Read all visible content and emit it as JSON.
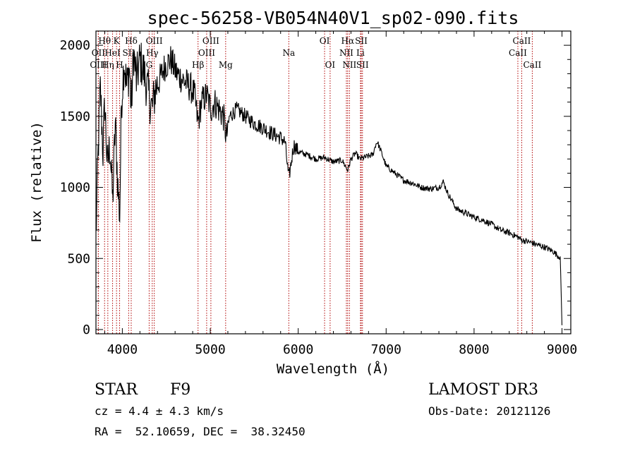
{
  "chart_data": {
    "type": "line",
    "title": "spec-56258-VB054N40V1_sp02-090.fits",
    "xlabel": "Wavelength (Å)",
    "ylabel": "Flux (relative)",
    "xlim": [
      3700,
      9100
    ],
    "ylim": [
      -30,
      2100
    ],
    "x_ticks": [
      4000,
      5000,
      6000,
      7000,
      8000,
      9000
    ],
    "x_tick_labels": [
      "4000",
      "5000",
      "6000",
      "7000",
      "8000",
      "9000"
    ],
    "y_ticks": [
      0,
      500,
      1000,
      1500,
      2000
    ],
    "y_tick_labels": [
      "0",
      "500",
      "1000",
      "1500",
      "2000"
    ],
    "spectrum": {
      "name": "flux",
      "x": [
        3700,
        3720,
        3750,
        3780,
        3800,
        3830,
        3860,
        3890,
        3920,
        3950,
        3970,
        3990,
        4020,
        4050,
        4080,
        4101,
        4130,
        4160,
        4200,
        4250,
        4300,
        4340,
        4380,
        4420,
        4480,
        4550,
        4620,
        4700,
        4780,
        4820,
        4861,
        4900,
        4960,
        5007,
        5050,
        5100,
        5150,
        5183,
        5220,
        5300,
        5400,
        5500,
        5600,
        5700,
        5800,
        5850,
        5893,
        5950,
        6000,
        6100,
        6200,
        6300,
        6400,
        6500,
        6563,
        6600,
        6650,
        6700,
        6750,
        6800,
        6850,
        6880,
        6900,
        6950,
        7000,
        7100,
        7200,
        7300,
        7400,
        7500,
        7600,
        7650,
        7700,
        7800,
        7900,
        8000,
        8100,
        8200,
        8300,
        8400,
        8500,
        8542,
        8600,
        8662,
        8700,
        8800,
        8900,
        8950,
        8980,
        9000
      ],
      "values": [
        640,
        1150,
        1700,
        1250,
        1600,
        1150,
        1300,
        900,
        1450,
        1000,
        800,
        1600,
        1900,
        1700,
        1850,
        1550,
        1950,
        1750,
        1900,
        1800,
        1650,
        1550,
        1700,
        1750,
        1850,
        1900,
        1800,
        1750,
        1700,
        1650,
        1450,
        1600,
        1650,
        1550,
        1600,
        1550,
        1500,
        1350,
        1500,
        1550,
        1500,
        1450,
        1420,
        1380,
        1350,
        1320,
        1060,
        1300,
        1250,
        1230,
        1200,
        1210,
        1180,
        1190,
        1120,
        1200,
        1240,
        1200,
        1210,
        1220,
        1230,
        1300,
        1320,
        1240,
        1150,
        1100,
        1050,
        1030,
        1000,
        990,
        1000,
        1040,
        960,
        850,
        820,
        790,
        770,
        740,
        700,
        680,
        650,
        630,
        620,
        610,
        600,
        580,
        550,
        520,
        510,
        30
      ]
    },
    "lines": [
      {
        "label": "Hθ",
        "x": 3798,
        "row": 0
      },
      {
        "label": "OII",
        "x": 3727,
        "row": 1
      },
      {
        "label": "OIII",
        "x": 3727,
        "row": 2
      },
      {
        "label": "Hη",
        "x": 3835,
        "row": 2
      },
      {
        "label": "K",
        "x": 3934,
        "row": 0
      },
      {
        "label": "HeI",
        "x": 3889,
        "row": 1
      },
      {
        "label": "H",
        "x": 3969,
        "row": 2
      },
      {
        "label": "Hδ",
        "x": 4101,
        "row": 0
      },
      {
        "label": "SII",
        "x": 4072,
        "row": 1
      },
      {
        "label": "OIII",
        "x": 4363,
        "row": 0
      },
      {
        "label": "Hγ",
        "x": 4340,
        "row": 1
      },
      {
        "label": "G",
        "x": 4305,
        "row": 2
      },
      {
        "label": "OIII",
        "x": 5007,
        "row": 0
      },
      {
        "label": "OIII",
        "x": 4959,
        "row": 1
      },
      {
        "label": "Hβ",
        "x": 4861,
        "row": 2
      },
      {
        "label": "Mg",
        "x": 5175,
        "row": 2
      },
      {
        "label": "Na",
        "x": 5893,
        "row": 1
      },
      {
        "label": "OI",
        "x": 6300,
        "row": 0
      },
      {
        "label": "OI",
        "x": 6363,
        "row": 2
      },
      {
        "label": "Hα",
        "x": 6563,
        "row": 0
      },
      {
        "label": "SII",
        "x": 6717,
        "row": 0
      },
      {
        "label": "NII",
        "x": 6548,
        "row": 1
      },
      {
        "label": "Li",
        "x": 6708,
        "row": 1
      },
      {
        "label": "NII",
        "x": 6583,
        "row": 2
      },
      {
        "label": "SII",
        "x": 6731,
        "row": 2
      },
      {
        "label": "CaII",
        "x": 8542,
        "row": 0
      },
      {
        "label": "CaII",
        "x": 8498,
        "row": 1
      },
      {
        "label": "CaII",
        "x": 8662,
        "row": 2
      }
    ]
  },
  "info": {
    "class": "STAR",
    "subclass": "F9",
    "survey": "LAMOST DR3",
    "cz": "cz = 4.4 ± 4.3 km/s",
    "obs_date": "Obs-Date: 20121126",
    "radec": "RA =  52.10659, DEC =  38.32450"
  },
  "colors": {
    "spectrum": "#000000",
    "line_marker": "#b00000",
    "axis": "#000000",
    "background": "#ffffff"
  }
}
